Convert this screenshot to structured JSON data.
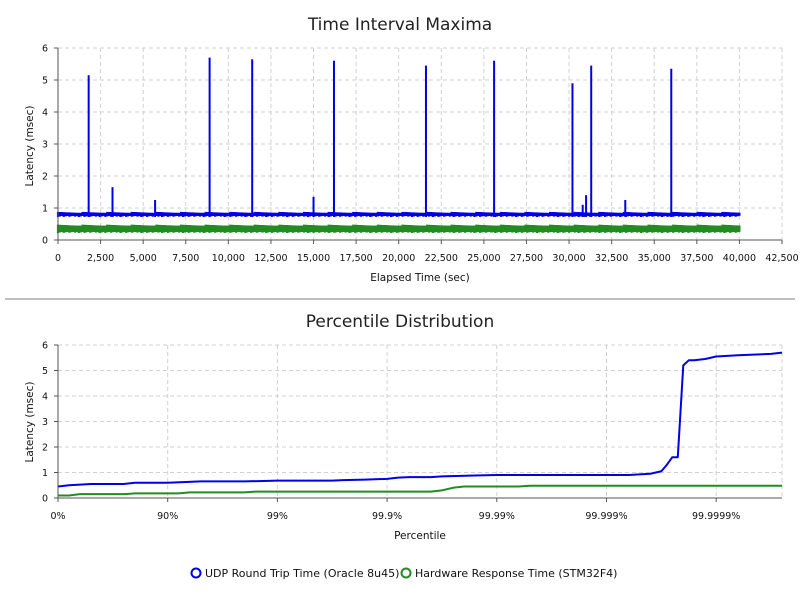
{
  "colors": {
    "udp": "#0000e6",
    "hw": "#228b22",
    "grid": "#d0d0d0",
    "separator": "#bfbfbf"
  },
  "legend": {
    "udp_label": "UDP Round Trip Time (Oracle 8u45)",
    "hw_label": "Hardware Response Time (STM32F4)"
  },
  "chart_data": [
    {
      "type": "line",
      "title": "Time Interval Maxima",
      "xlabel": "Elapsed Time (sec)",
      "ylabel": "Latency (msec)",
      "xlim": [
        0,
        42500
      ],
      "ylim": [
        0,
        6
      ],
      "x_ticks": [
        0,
        2500,
        5000,
        7500,
        10000,
        12500,
        15000,
        17500,
        20000,
        22500,
        25000,
        27500,
        30000,
        32500,
        35000,
        37500,
        40000,
        42500
      ],
      "x_tick_labels": [
        "0",
        "2,500",
        "5,000",
        "7,500",
        "10,000",
        "12,500",
        "15,000",
        "17,500",
        "20,000",
        "22,500",
        "25,000",
        "27,500",
        "30,000",
        "32,500",
        "35,000",
        "37,500",
        "40,000",
        "42,500"
      ],
      "y_ticks": [
        0,
        1,
        2,
        3,
        4,
        5,
        6
      ],
      "y_tick_labels": [
        "0",
        "1",
        "2",
        "3",
        "4",
        "5",
        "6"
      ],
      "grid": true,
      "series": [
        {
          "name": "UDP Round Trip Time (Oracle 8u45)",
          "x_range": [
            0,
            40000
          ],
          "baseline_band": [
            0.72,
            0.88
          ],
          "spikes": [
            {
              "x": 1800,
              "y": 5.15
            },
            {
              "x": 3200,
              "y": 1.65
            },
            {
              "x": 5700,
              "y": 1.25
            },
            {
              "x": 8900,
              "y": 5.7
            },
            {
              "x": 11400,
              "y": 5.65
            },
            {
              "x": 15000,
              "y": 1.35
            },
            {
              "x": 16200,
              "y": 5.6
            },
            {
              "x": 21600,
              "y": 5.45
            },
            {
              "x": 25600,
              "y": 5.6
            },
            {
              "x": 30200,
              "y": 4.9
            },
            {
              "x": 30800,
              "y": 1.1
            },
            {
              "x": 31000,
              "y": 1.4
            },
            {
              "x": 31300,
              "y": 5.45
            },
            {
              "x": 33300,
              "y": 1.25
            },
            {
              "x": 36000,
              "y": 5.35
            }
          ]
        },
        {
          "name": "Hardware Response Time (STM32F4)",
          "x_range": [
            0,
            40000
          ],
          "baseline_band": [
            0.22,
            0.48
          ],
          "spikes": []
        }
      ]
    },
    {
      "type": "line",
      "title": "Percentile Distribution",
      "xlabel": "Percentile",
      "ylabel": "Latency (msec)",
      "x_scale": "log-percentile",
      "x_ticks": [
        0,
        1,
        2,
        3,
        4,
        5,
        6
      ],
      "x_tick_labels": [
        "0%",
        "90%",
        "99%",
        "99.9%",
        "99.99%",
        "99.999%",
        "99.9999%"
      ],
      "xlim": [
        0,
        6.6
      ],
      "ylim": [
        0,
        6
      ],
      "y_ticks": [
        0,
        1,
        2,
        3,
        4,
        5,
        6
      ],
      "y_tick_labels": [
        "0",
        "1",
        "2",
        "3",
        "4",
        "5",
        "6"
      ],
      "grid": true,
      "series": [
        {
          "name": "UDP Round Trip Time (Oracle 8u45)",
          "x": [
            0,
            0.1,
            0.3,
            0.6,
            0.7,
            1.0,
            1.3,
            1.7,
            2.0,
            2.5,
            2.6,
            2.8,
            3.0,
            3.1,
            3.2,
            3.4,
            3.5,
            3.8,
            4.0,
            4.5,
            5.0,
            5.2,
            5.4,
            5.5,
            5.55,
            5.6,
            5.65,
            5.7,
            5.75,
            5.8,
            5.9,
            6.0,
            6.2,
            6.5,
            6.6
          ],
          "values": [
            0.45,
            0.5,
            0.55,
            0.55,
            0.6,
            0.6,
            0.65,
            0.65,
            0.68,
            0.68,
            0.7,
            0.72,
            0.75,
            0.8,
            0.82,
            0.82,
            0.85,
            0.88,
            0.9,
            0.9,
            0.9,
            0.9,
            0.95,
            1.05,
            1.3,
            1.6,
            1.6,
            5.2,
            5.4,
            5.4,
            5.45,
            5.55,
            5.6,
            5.65,
            5.7
          ]
        },
        {
          "name": "Hardware Response Time (STM32F4)",
          "x": [
            0,
            0.1,
            0.2,
            0.6,
            0.7,
            1.1,
            1.2,
            1.7,
            1.8,
            3.4,
            3.5,
            3.6,
            3.7,
            4.2,
            4.3,
            6.6
          ],
          "values": [
            0.1,
            0.1,
            0.15,
            0.15,
            0.18,
            0.18,
            0.22,
            0.22,
            0.25,
            0.25,
            0.3,
            0.4,
            0.45,
            0.45,
            0.48,
            0.48
          ]
        }
      ]
    }
  ]
}
